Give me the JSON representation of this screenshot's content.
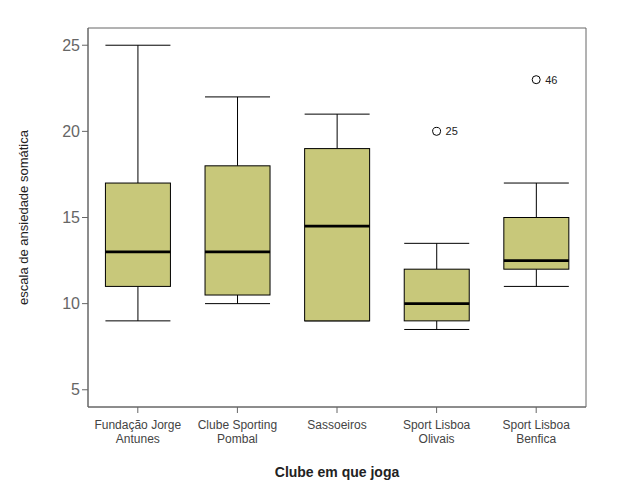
{
  "chart_data": {
    "type": "box",
    "xlabel": "Clube em que joga",
    "ylabel": "escala de ansiedade somática",
    "categories": [
      "Fundação Jorge\nAntunes",
      "Clube Sporting\nPombal",
      "Sassoeiros",
      "Sport Lisboa\nOlivais",
      "Sport Lisboa\nBenfica"
    ],
    "boxes": [
      {
        "q1": 11.0,
        "median": 13.0,
        "q3": 17.0,
        "whisker_low": 9.0,
        "whisker_high": 25.0,
        "outliers": [],
        "outlier_labels": []
      },
      {
        "q1": 10.5,
        "median": 13.0,
        "q3": 18.0,
        "whisker_low": 10.0,
        "whisker_high": 22.0,
        "outliers": [],
        "outlier_labels": []
      },
      {
        "q1": 9.0,
        "median": 14.5,
        "q3": 19.0,
        "whisker_low": 9.0,
        "whisker_high": 21.0,
        "outliers": [],
        "outlier_labels": []
      },
      {
        "q1": 9.0,
        "median": 10.0,
        "q3": 12.0,
        "whisker_low": 8.5,
        "whisker_high": 13.5,
        "outliers": [
          20.0
        ],
        "outlier_labels": [
          "25"
        ]
      },
      {
        "q1": 12.0,
        "median": 12.5,
        "q3": 15.0,
        "whisker_low": 11.0,
        "whisker_high": 17.0,
        "outliers": [
          23.0
        ],
        "outlier_labels": [
          "46"
        ]
      }
    ],
    "color": "#c8c87a",
    "ylim": [
      4,
      26
    ],
    "yticks": [
      5,
      10,
      15,
      20,
      25
    ],
    "grid": false
  }
}
